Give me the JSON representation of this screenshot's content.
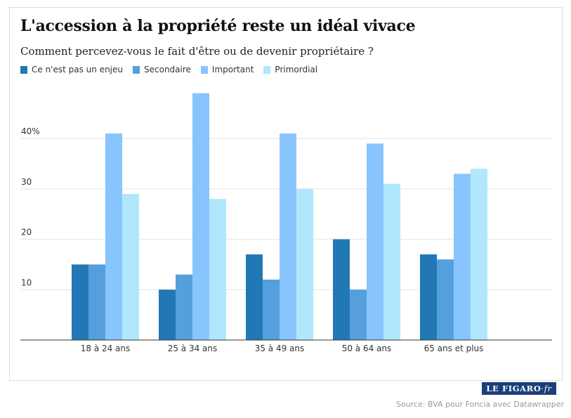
{
  "title": "L'accession à la propriété reste un idéal vivace",
  "subtitle": "Comment percevez-vous le fait d'être ou de devenir propriétaire ?",
  "logo": {
    "main": "LE FIGARO",
    "suffix": "·fr"
  },
  "source": "Source: BVA pour Foncia avec Datawrapper",
  "chart_data": {
    "type": "bar",
    "categories": [
      "18 à 24 ans",
      "25 à 34 ans",
      "35 à 49 ans",
      "50 à 64 ans",
      "65 ans et plus"
    ],
    "series": [
      {
        "name": "Ce n'est pas un enjeu",
        "color": "#2278b5",
        "values": [
          15,
          10,
          17,
          20,
          17
        ]
      },
      {
        "name": "Secondaire",
        "color": "#559fdc",
        "values": [
          15,
          13,
          12,
          10,
          16
        ]
      },
      {
        "name": "Important",
        "color": "#88c5ff",
        "values": [
          41,
          49,
          41,
          39,
          33
        ]
      },
      {
        "name": "Primordial",
        "color": "#b0e7fc",
        "values": [
          29,
          28,
          30,
          31,
          34
        ]
      }
    ],
    "yticks": [
      10,
      20,
      30,
      40
    ],
    "ytick_labels": [
      "10",
      "20",
      "30",
      "40%"
    ],
    "ylim": [
      0,
      50
    ],
    "grid": true,
    "legend": "top-left"
  }
}
